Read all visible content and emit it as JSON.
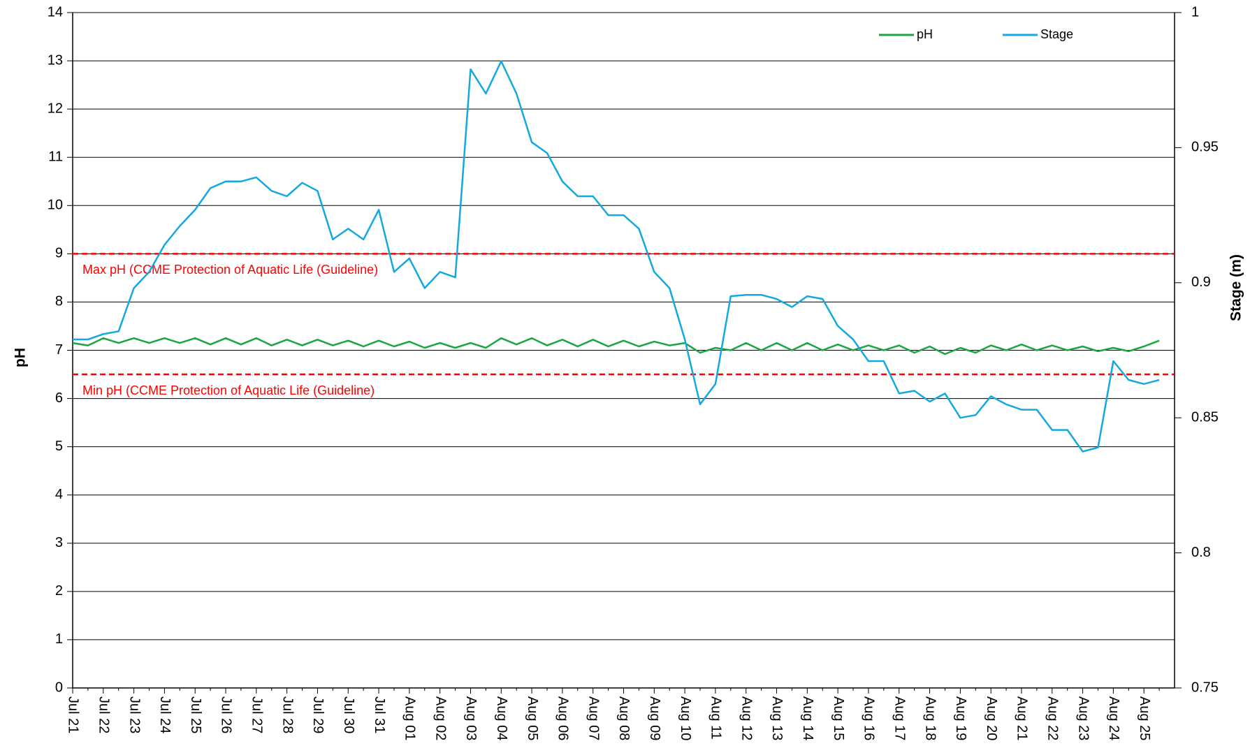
{
  "chart_data": {
    "type": "line",
    "y_label": "pH",
    "y2_label": "Stage (m)",
    "categories": [
      "Jul 21",
      null,
      "Jul 22",
      null,
      "Jul 23",
      null,
      "Jul 24",
      null,
      "Jul 25",
      null,
      "Jul 26",
      null,
      "Jul 27",
      null,
      "Jul 28",
      null,
      "Jul 29",
      null,
      "Jul 30",
      null,
      "Jul 31",
      null,
      "Aug 01",
      null,
      "Aug 02",
      null,
      "Aug 03",
      null,
      "Aug 04",
      null,
      "Aug 05",
      null,
      "Aug 06",
      null,
      "Aug 07",
      null,
      "Aug 08",
      null,
      "Aug 09",
      null,
      "Aug 10",
      null,
      "Aug 11",
      null,
      "Aug 12",
      null,
      "Aug 13",
      null,
      "Aug 14",
      null,
      "Aug 15",
      null,
      "Aug 16",
      null,
      "Aug 17",
      null,
      "Aug 18",
      null,
      "Aug 19",
      null,
      "Aug 20",
      null,
      "Aug 21",
      null,
      "Aug 22",
      null,
      "Aug 23",
      null,
      "Aug 24",
      null,
      "Aug 25",
      null
    ],
    "series": [
      {
        "name": "pH",
        "color": "#1aa641",
        "values": [
          7.15,
          7.1,
          7.25,
          7.15,
          7.25,
          7.15,
          7.25,
          7.15,
          7.25,
          7.12,
          7.25,
          7.12,
          7.25,
          7.1,
          7.22,
          7.1,
          7.22,
          7.1,
          7.2,
          7.08,
          7.2,
          7.08,
          7.18,
          7.05,
          7.15,
          7.05,
          7.15,
          7.05,
          7.25,
          7.12,
          7.25,
          7.1,
          7.22,
          7.08,
          7.22,
          7.08,
          7.2,
          7.08,
          7.18,
          7.1,
          7.15,
          6.95,
          7.05,
          7.0,
          7.15,
          7.0,
          7.15,
          7.0,
          7.15,
          7.0,
          7.12,
          7.0,
          7.1,
          7.0,
          7.1,
          6.95,
          7.08,
          6.92,
          7.05,
          6.95,
          7.1,
          7.0,
          7.12,
          7.0,
          7.1,
          7.0,
          7.08,
          6.98,
          7.05,
          6.98,
          7.08,
          7.2
        ]
      },
      {
        "name": "Stage",
        "color": "#13a8e0",
        "axis": "y2",
        "values": [
          0.879,
          0.879,
          0.881,
          0.882,
          0.898,
          0.904,
          0.914,
          0.921,
          0.927,
          0.935,
          0.9375,
          0.9375,
          0.939,
          0.934,
          0.932,
          0.937,
          0.934,
          0.916,
          0.92,
          0.916,
          0.927,
          0.904,
          0.909,
          0.898,
          0.904,
          0.902,
          0.979,
          0.97,
          0.982,
          0.97,
          0.952,
          0.948,
          0.9375,
          0.932,
          0.932,
          0.925,
          0.925,
          0.92,
          0.904,
          0.898,
          0.879,
          0.855,
          0.8625,
          0.895,
          0.8955,
          0.8955,
          0.894,
          0.891,
          0.895,
          0.894,
          0.884,
          0.879,
          0.871,
          0.871,
          0.859,
          0.86,
          0.856,
          0.859,
          0.85,
          0.851,
          0.858,
          0.855,
          0.853,
          0.853,
          0.8455,
          0.8455,
          0.8375,
          0.839,
          0.871,
          0.864,
          0.8625,
          0.864
        ]
      }
    ],
    "guidelines": [
      {
        "label": "Max pH (CCME Protection of Aquatic Life (Guideline)",
        "value": 9,
        "color": "#ff0000"
      },
      {
        "label": "Min pH (CCME Protection of Aquatic Life (Guideline)",
        "value": 6.5,
        "color": "#ff0000"
      }
    ],
    "ylim": [
      0,
      14
    ],
    "yticks": [
      0,
      1,
      2,
      3,
      4,
      5,
      6,
      7,
      8,
      9,
      10,
      11,
      12,
      13,
      14
    ],
    "y2lim": [
      0.75,
      1
    ],
    "y2ticks": [
      0.75,
      0.8,
      0.85,
      0.9,
      0.95,
      1
    ],
    "grid": true,
    "legend": "top-right"
  }
}
